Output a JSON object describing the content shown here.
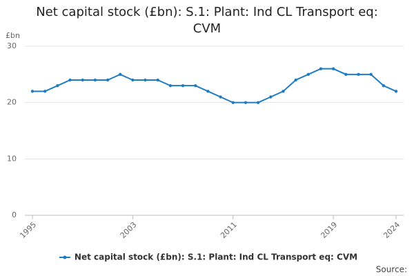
{
  "chart_data": {
    "type": "line",
    "title": "Net capital stock (£bn): S.1: Plant: Ind CL Transport eq: CVM",
    "y_label": "£bn",
    "source": "Source:",
    "x": [
      1995,
      1996,
      1997,
      1998,
      1999,
      2000,
      2001,
      2002,
      2003,
      2004,
      2005,
      2006,
      2007,
      2008,
      2009,
      2010,
      2011,
      2012,
      2013,
      2014,
      2015,
      2016,
      2017,
      2018,
      2019,
      2020,
      2021,
      2022,
      2023,
      2024
    ],
    "series": [
      {
        "name": "Net capital stock (£bn): S.1: Plant: Ind CL Transport eq: CVM",
        "color": "#1f7cc1",
        "values": [
          22,
          22,
          23,
          24,
          24,
          24,
          24,
          25,
          24,
          24,
          24,
          23,
          23,
          23,
          22,
          21,
          20,
          20,
          20,
          21,
          22,
          24,
          25,
          26,
          26,
          25,
          25,
          25,
          23,
          22
        ]
      }
    ],
    "xlim": [
      1995,
      2024
    ],
    "xticks": [
      1995,
      2003,
      2011,
      2019,
      2024
    ],
    "ylim": [
      0,
      30
    ],
    "yticks": [
      0,
      10,
      20,
      30
    ],
    "grid": true
  }
}
